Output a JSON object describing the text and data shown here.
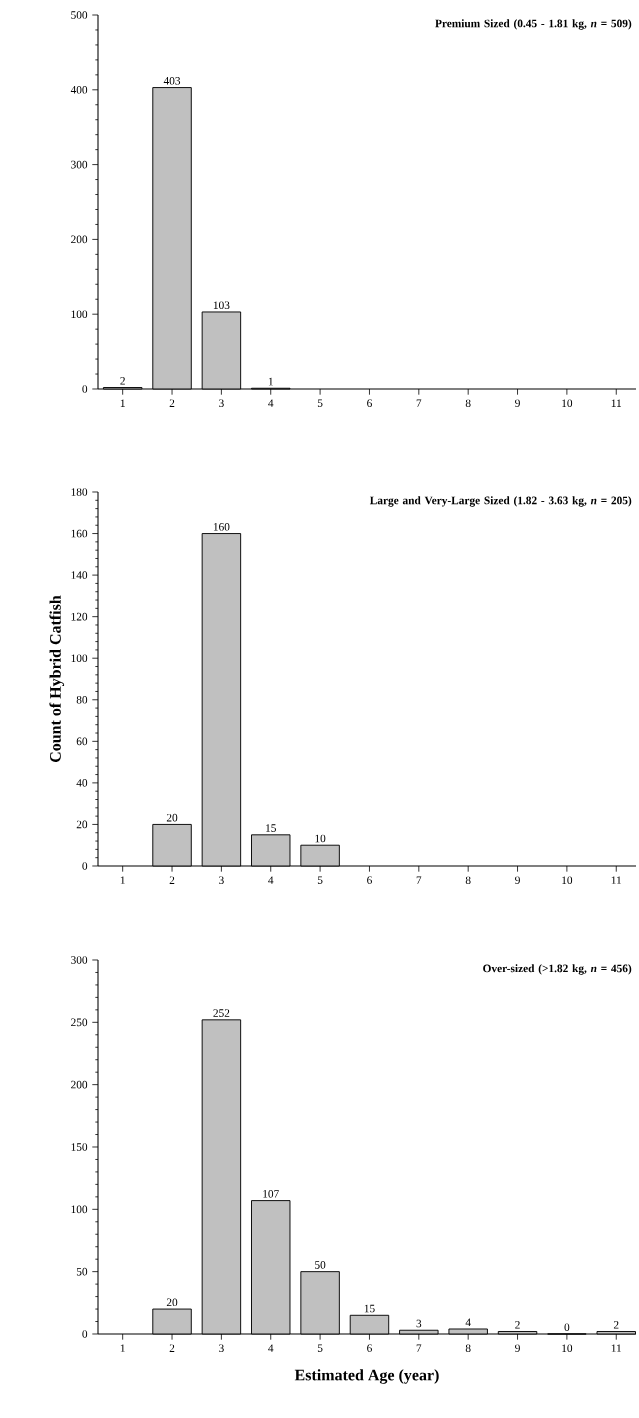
{
  "chart_data": [
    {
      "type": "bar",
      "title": "**Premium Sized (0.45 - 1.81 kg, *n* = 509)**",
      "categories": [
        "1",
        "2",
        "3",
        "4",
        "5",
        "6",
        "7",
        "8",
        "9",
        "10",
        "11"
      ],
      "values": [
        2,
        403,
        103,
        1,
        null,
        null,
        null,
        null,
        null,
        null,
        null
      ],
      "color": "#c0c0c0",
      "ylim": [
        0,
        500
      ],
      "yticks": [
        0,
        100,
        200,
        300,
        400,
        500
      ],
      "data_labels": true
    },
    {
      "type": "bar",
      "title": "**Large and Very-Large Sized (1.82 - 3.63 kg, *n* = 205)**",
      "ylabel": "Count of Hybrid Catfish",
      "categories": [
        "1",
        "2",
        "3",
        "4",
        "5",
        "6",
        "7",
        "8",
        "9",
        "10",
        "11"
      ],
      "values": [
        null,
        20,
        160,
        15,
        10,
        null,
        null,
        null,
        null,
        null,
        null
      ],
      "color": "#c0c0c0",
      "ylim": [
        0,
        180
      ],
      "yticks": [
        0,
        20,
        40,
        60,
        80,
        100,
        120,
        140,
        160,
        180
      ],
      "data_labels": true
    },
    {
      "type": "bar",
      "title": "**Over-sized (>1.82 kg, *n* = 456)**",
      "xlabel": "Estimated Age (year)",
      "categories": [
        "1",
        "2",
        "3",
        "4",
        "5",
        "6",
        "7",
        "8",
        "9",
        "10",
        "11"
      ],
      "values": [
        null,
        20,
        252,
        107,
        50,
        15,
        3,
        4,
        2,
        0,
        2
      ],
      "color": "#c0c0c0",
      "ylim": [
        0,
        300
      ],
      "yticks": [
        0,
        50,
        100,
        150,
        200,
        250,
        300
      ],
      "data_labels": true
    }
  ]
}
